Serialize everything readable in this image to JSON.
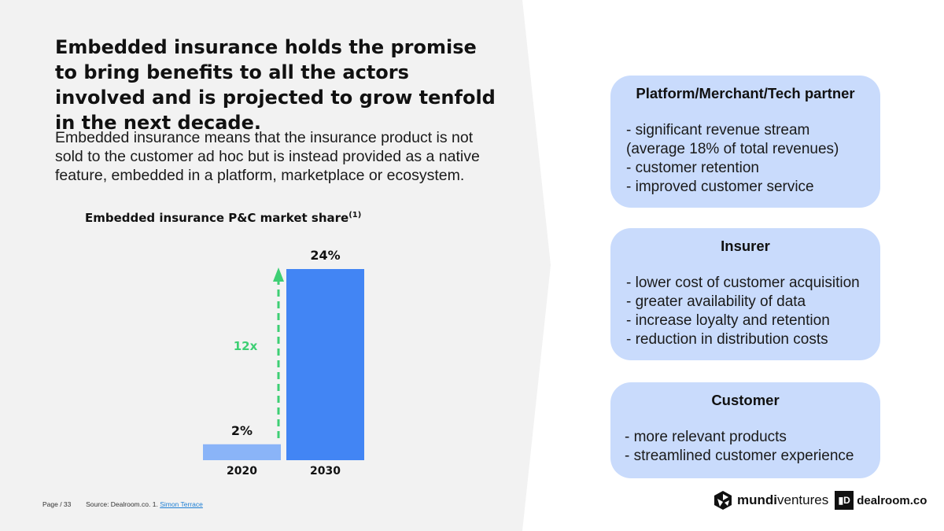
{
  "title": "Embedded insurance holds the promise to bring benefits to all the actors involved and is projected to grow tenfold in the next decade.",
  "subtitle": "Embedded insurance means that the insurance product is not sold to the customer ad hoc but is instead provided as a native feature, embedded in a platform, marketplace or ecosystem.",
  "chart_data": {
    "type": "bar",
    "title": "Embedded insurance P&C market share",
    "title_footnote": "(1)",
    "categories": [
      "2020",
      "2030"
    ],
    "values": [
      2,
      24
    ],
    "value_labels": [
      "2%",
      "24%"
    ],
    "bar_colors": [
      "#8ab4f8",
      "#4285f4"
    ],
    "annotation": "12x",
    "annotation_color": "#3ecf74",
    "ylim": [
      0,
      24
    ]
  },
  "cards": [
    {
      "title": "Platform/Merchant/Tech partner",
      "items": [
        "- significant revenue stream",
        "(average 18% of total revenues)",
        "- customer retention",
        "- improved customer service"
      ]
    },
    {
      "title": "Insurer",
      "items": [
        "- lower cost of customer acquisition",
        "- greater availability of data",
        "- increase loyalty and retention",
        "- reduction in distribution costs"
      ]
    },
    {
      "title": "Customer",
      "items": [
        "- more relevant products",
        "- streamlined customer experience"
      ]
    }
  ],
  "footer": {
    "page": "Page / 33",
    "source": "Source: Dealroom.co.",
    "ref_num": "1.",
    "ref_link": "Simon Terrace"
  },
  "logos": {
    "mundi_bold": "mundi",
    "mundi_rest": "ventures",
    "dealroom_mark": "▮D",
    "dealroom": "dealroom.co",
    "mundi_icon": "mundiventures-logo-icon",
    "dealroom_icon": "dealroom-logo-icon"
  },
  "colors": {
    "left_panel": "#f2f2f2",
    "card_bg": "#c9dbfc"
  }
}
